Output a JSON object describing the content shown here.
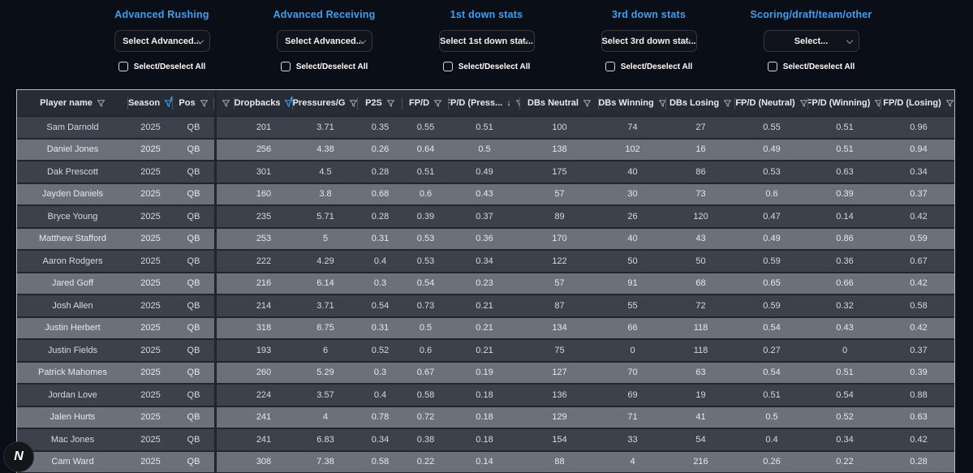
{
  "filters": {
    "checkbox_label": "Select/Deselect All",
    "groups": [
      {
        "title": "Advanced Rushing",
        "button_label": "Select Advanced..."
      },
      {
        "title": "Advanced Receiving",
        "button_label": "Select Advanced..."
      },
      {
        "title": "1st down stats",
        "button_label": "Select 1st down stat..."
      },
      {
        "title": "3rd down stats",
        "button_label": "Select 3rd down stat..."
      },
      {
        "title": "Scoring/draft/team/other",
        "button_label": "Select..."
      }
    ]
  },
  "table": {
    "columns": [
      {
        "label": "Player name",
        "filter": true,
        "filter_active": false,
        "sort": null
      },
      {
        "label": "Season",
        "filter": true,
        "filter_active": true,
        "sort": null
      },
      {
        "label": "Pos",
        "filter": true,
        "filter_active": false,
        "sort": null
      },
      {
        "label": "",
        "filter": true,
        "filter_active": false,
        "sort": null
      },
      {
        "label": "Dropbacks",
        "filter": true,
        "filter_active": true,
        "sort": null
      },
      {
        "label": "Pressures/G",
        "filter": true,
        "filter_active": false,
        "sort": null
      },
      {
        "label": "P2S",
        "filter": true,
        "filter_active": false,
        "sort": null
      },
      {
        "label": "FP/D",
        "filter": true,
        "filter_active": false,
        "sort": null
      },
      {
        "label": "FP/D (Press...",
        "filter": true,
        "filter_active": false,
        "sort": "desc"
      },
      {
        "label": "DBs Neutral",
        "filter": true,
        "filter_active": false,
        "sort": null
      },
      {
        "label": "DBs Winning",
        "filter": true,
        "filter_active": false,
        "sort": null
      },
      {
        "label": "DBs Losing",
        "filter": true,
        "filter_active": false,
        "sort": null
      },
      {
        "label": "FP/D (Neutral)",
        "filter": true,
        "filter_active": false,
        "sort": null
      },
      {
        "label": "FP/D (Winning)",
        "filter": true,
        "filter_active": false,
        "sort": null
      },
      {
        "label": "FP/D (Losing)",
        "filter": true,
        "filter_active": false,
        "sort": null
      }
    ],
    "rows": [
      {
        "cells": [
          "Sam Darnold",
          "2025",
          "QB",
          "",
          "201",
          "3.71",
          "0.35",
          "0.55",
          "0.51",
          "100",
          "74",
          "27",
          "0.55",
          "0.51",
          "0.96"
        ]
      },
      {
        "cells": [
          "Daniel Jones",
          "2025",
          "QB",
          "",
          "256",
          "4.38",
          "0.26",
          "0.64",
          "0.5",
          "138",
          "102",
          "16",
          "0.49",
          "0.51",
          "0.94"
        ]
      },
      {
        "cells": [
          "Dak Prescott",
          "2025",
          "QB",
          "",
          "301",
          "4.5",
          "0.28",
          "0.51",
          "0.49",
          "175",
          "40",
          "86",
          "0.53",
          "0.63",
          "0.34"
        ]
      },
      {
        "cells": [
          "Jayden Daniels",
          "2025",
          "QB",
          "",
          "160",
          "3.8",
          "0.68",
          "0.6",
          "0.43",
          "57",
          "30",
          "73",
          "0.6",
          "0.39",
          "0.37"
        ]
      },
      {
        "cells": [
          "Bryce Young",
          "2025",
          "QB",
          "",
          "235",
          "5.71",
          "0.28",
          "0.39",
          "0.37",
          "89",
          "26",
          "120",
          "0.47",
          "0.14",
          "0.42"
        ]
      },
      {
        "cells": [
          "Matthew Stafford",
          "2025",
          "QB",
          "",
          "253",
          "5",
          "0.31",
          "0.53",
          "0.36",
          "170",
          "40",
          "43",
          "0.49",
          "0.86",
          "0.59"
        ]
      },
      {
        "cells": [
          "Aaron Rodgers",
          "2025",
          "QB",
          "",
          "222",
          "4.29",
          "0.4",
          "0.53",
          "0.34",
          "122",
          "50",
          "50",
          "0.59",
          "0.36",
          "0.67"
        ]
      },
      {
        "cells": [
          "Jared Goff",
          "2025",
          "QB",
          "",
          "216",
          "6.14",
          "0.3",
          "0.54",
          "0.23",
          "57",
          "91",
          "68",
          "0.65",
          "0.66",
          "0.42"
        ]
      },
      {
        "cells": [
          "Josh Allen",
          "2025",
          "QB",
          "",
          "214",
          "3.71",
          "0.54",
          "0.73",
          "0.21",
          "87",
          "55",
          "72",
          "0.59",
          "0.32",
          "0.58"
        ]
      },
      {
        "cells": [
          "Justin Herbert",
          "2025",
          "QB",
          "",
          "318",
          "8.75",
          "0.31",
          "0.5",
          "0.21",
          "134",
          "66",
          "118",
          "0.54",
          "0.43",
          "0.42"
        ]
      },
      {
        "cells": [
          "Justin Fields",
          "2025",
          "QB",
          "",
          "193",
          "6",
          "0.52",
          "0.6",
          "0.21",
          "75",
          "0",
          "118",
          "0.27",
          "0",
          "0.37"
        ]
      },
      {
        "cells": [
          "Patrick Mahomes",
          "2025",
          "QB",
          "",
          "260",
          "5.29",
          "0.3",
          "0.67",
          "0.19",
          "127",
          "70",
          "63",
          "0.54",
          "0.51",
          "0.39"
        ]
      },
      {
        "cells": [
          "Jordan Love",
          "2025",
          "QB",
          "",
          "224",
          "3.57",
          "0.4",
          "0.58",
          "0.18",
          "136",
          "69",
          "19",
          "0.51",
          "0.54",
          "0.88"
        ]
      },
      {
        "cells": [
          "Jalen Hurts",
          "2025",
          "QB",
          "",
          "241",
          "4",
          "0.78",
          "0.72",
          "0.18",
          "129",
          "71",
          "41",
          "0.5",
          "0.52",
          "0.63"
        ]
      },
      {
        "cells": [
          "Mac Jones",
          "2025",
          "QB",
          "",
          "241",
          "6.83",
          "0.34",
          "0.38",
          "0.18",
          "154",
          "33",
          "54",
          "0.4",
          "0.34",
          "0.42"
        ]
      },
      {
        "cells": [
          "Cam Ward",
          "2025",
          "QB",
          "",
          "308",
          "7.38",
          "0.58",
          "0.22",
          "0.14",
          "88",
          "4",
          "216",
          "0.26",
          "0.22",
          "0.28"
        ]
      }
    ]
  },
  "floating_badge": {
    "label": "N"
  },
  "colors": {
    "accent_blue": "#38a1f8",
    "filter_active_blue": "#2f9bf6",
    "header_bg": "#272d36",
    "row_dark": "#3b424b",
    "row_light": "#6a717b",
    "page_bg": "#0a0e16"
  }
}
